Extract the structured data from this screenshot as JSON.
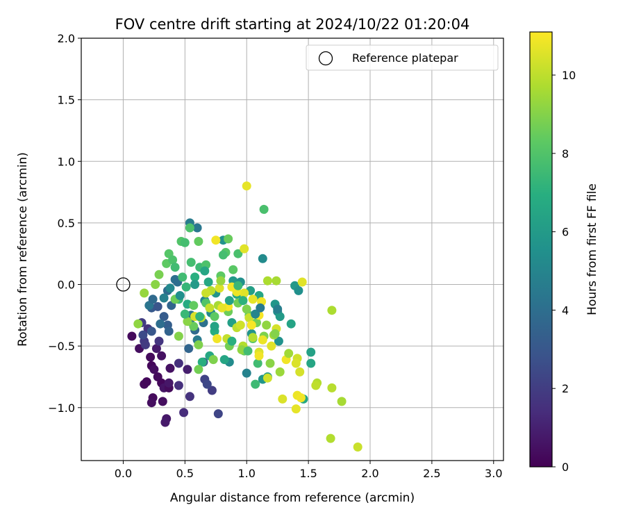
{
  "chart_data": {
    "type": "scatter",
    "title": "FOV centre drift starting at 2024/10/22 01:20:04",
    "xlabel": "Angular distance from reference (arcmin)",
    "ylabel": "Rotation from reference (arcmin)",
    "xlim": [
      -0.34,
      3.08
    ],
    "ylim": [
      -1.43,
      2.0
    ],
    "xticks": [
      0.0,
      0.5,
      1.0,
      1.5,
      2.0,
      2.5,
      3.0
    ],
    "xtick_labels": [
      "0.0",
      "0.5",
      "1.0",
      "1.5",
      "2.0",
      "2.5",
      "3.0"
    ],
    "yticks": [
      -1.0,
      -0.5,
      0.0,
      0.5,
      1.0,
      1.5,
      2.0
    ],
    "ytick_labels": [
      "−1.0",
      "−0.5",
      "0.0",
      "0.5",
      "1.0",
      "1.5",
      "2.0"
    ],
    "grid": true,
    "legend_position": "top-right",
    "reference_marker": {
      "label": "Reference platepar",
      "x": 0.0,
      "y": 0.0
    },
    "colorbar": {
      "label": "Hours from first FF file",
      "range": [
        0,
        11.1
      ],
      "ticks": [
        0,
        2,
        4,
        6,
        8,
        10
      ],
      "tick_labels": [
        "0",
        "2",
        "4",
        "6",
        "8",
        "10"
      ],
      "colormap": "viridis"
    },
    "points": [
      {
        "x": 0.07,
        "y": -0.42,
        "h": 0.3
      },
      {
        "x": 0.13,
        "y": -0.52,
        "h": 0.4
      },
      {
        "x": 0.17,
        "y": -0.81,
        "h": 0.3
      },
      {
        "x": 0.19,
        "y": -0.79,
        "h": 0.2
      },
      {
        "x": 0.22,
        "y": -0.59,
        "h": 0.3
      },
      {
        "x": 0.23,
        "y": -0.66,
        "h": 0.2
      },
      {
        "x": 0.24,
        "y": -0.92,
        "h": 0.3
      },
      {
        "x": 0.23,
        "y": -0.96,
        "h": 0.4
      },
      {
        "x": 0.25,
        "y": -0.69,
        "h": 0.4
      },
      {
        "x": 0.28,
        "y": -0.75,
        "h": 0.3
      },
      {
        "x": 0.31,
        "y": -0.8,
        "h": 0.2
      },
      {
        "x": 0.32,
        "y": -0.95,
        "h": 0.4
      },
      {
        "x": 0.31,
        "y": -0.58,
        "h": 0.5
      },
      {
        "x": 0.33,
        "y": -0.84,
        "h": 0.6
      },
      {
        "x": 0.37,
        "y": -0.84,
        "h": 0.3
      },
      {
        "x": 0.38,
        "y": -0.68,
        "h": 0.5
      },
      {
        "x": 0.35,
        "y": -1.09,
        "h": 0.7
      },
      {
        "x": 0.34,
        "y": -1.12,
        "h": 0.8
      },
      {
        "x": 0.37,
        "y": -0.8,
        "h": 0.7
      },
      {
        "x": 0.27,
        "y": -0.52,
        "h": 0.8
      },
      {
        "x": 0.49,
        "y": -1.04,
        "h": 1.4
      },
      {
        "x": 0.52,
        "y": -0.69,
        "h": 0.9
      },
      {
        "x": 0.45,
        "y": -0.82,
        "h": 1.5
      },
      {
        "x": 0.54,
        "y": -0.91,
        "h": 1.6
      },
      {
        "x": 0.45,
        "y": -0.64,
        "h": 1.5
      },
      {
        "x": 0.77,
        "y": -1.05,
        "h": 2.3
      },
      {
        "x": 0.72,
        "y": -0.86,
        "h": 2.0
      },
      {
        "x": 0.66,
        "y": -0.77,
        "h": 2.2
      },
      {
        "x": 0.68,
        "y": -0.81,
        "h": 2.4
      },
      {
        "x": 0.65,
        "y": -0.63,
        "h": 3.0
      },
      {
        "x": 0.2,
        "y": -0.36,
        "h": 1.6
      },
      {
        "x": 0.17,
        "y": -0.46,
        "h": 1.8
      },
      {
        "x": 0.15,
        "y": -0.31,
        "h": 2.0
      },
      {
        "x": 0.18,
        "y": -0.49,
        "h": 1.9
      },
      {
        "x": 0.29,
        "y": -0.46,
        "h": 1.7
      },
      {
        "x": 0.23,
        "y": -0.19,
        "h": 3.1
      },
      {
        "x": 0.28,
        "y": -0.18,
        "h": 2.9
      },
      {
        "x": 0.33,
        "y": -0.26,
        "h": 3.2
      },
      {
        "x": 0.36,
        "y": -0.33,
        "h": 3.3
      },
      {
        "x": 0.39,
        "y": -0.17,
        "h": 3.6
      },
      {
        "x": 0.36,
        "y": -0.05,
        "h": 3.9
      },
      {
        "x": 0.42,
        "y": 0.04,
        "h": 4.1
      },
      {
        "x": 0.44,
        "y": 0.02,
        "h": 4.0
      },
      {
        "x": 0.55,
        "y": -0.25,
        "h": 4.2
      },
      {
        "x": 0.54,
        "y": -0.3,
        "h": 4.4
      },
      {
        "x": 0.53,
        "y": -0.52,
        "h": 3.6
      },
      {
        "x": 0.6,
        "y": -0.45,
        "h": 4.5
      },
      {
        "x": 0.65,
        "y": -0.31,
        "h": 4.1
      },
      {
        "x": 0.54,
        "y": 0.5,
        "h": 4.6
      },
      {
        "x": 0.6,
        "y": 0.46,
        "h": 4.4
      },
      {
        "x": 0.58,
        "y": -0.37,
        "h": 3.8
      },
      {
        "x": 0.81,
        "y": 0.36,
        "h": 5.6
      },
      {
        "x": 0.66,
        "y": -0.13,
        "h": 5.0
      },
      {
        "x": 0.71,
        "y": -0.23,
        "h": 5.2
      },
      {
        "x": 0.86,
        "y": -0.63,
        "h": 5.3
      },
      {
        "x": 0.75,
        "y": -0.07,
        "h": 5.7
      },
      {
        "x": 0.89,
        "y": 0.03,
        "h": 5.9
      },
      {
        "x": 0.95,
        "y": 0.02,
        "h": 5.5
      },
      {
        "x": 1.0,
        "y": -0.72,
        "h": 4.9
      },
      {
        "x": 1.13,
        "y": 0.21,
        "h": 5.3
      },
      {
        "x": 1.04,
        "y": -0.4,
        "h": 5.7
      },
      {
        "x": 1.13,
        "y": -0.77,
        "h": 5.8
      },
      {
        "x": 1.17,
        "y": -0.75,
        "h": 6.1
      },
      {
        "x": 1.23,
        "y": -0.16,
        "h": 5.8
      },
      {
        "x": 1.25,
        "y": -0.22,
        "h": 5.4
      },
      {
        "x": 1.26,
        "y": -0.46,
        "h": 5.6
      },
      {
        "x": 1.27,
        "y": -0.26,
        "h": 6.0
      },
      {
        "x": 1.39,
        "y": -0.01,
        "h": 5.9
      },
      {
        "x": 1.42,
        "y": -0.05,
        "h": 5.5
      },
      {
        "x": 1.36,
        "y": -0.32,
        "h": 6.4
      },
      {
        "x": 1.52,
        "y": -0.55,
        "h": 6.3
      },
      {
        "x": 1.52,
        "y": -0.64,
        "h": 6.5
      },
      {
        "x": 1.46,
        "y": -0.93,
        "h": 6.6
      },
      {
        "x": 1.03,
        "y": -0.05,
        "h": 6.2
      },
      {
        "x": 1.1,
        "y": -0.09,
        "h": 6.5
      },
      {
        "x": 0.88,
        "y": -0.31,
        "h": 6.2
      },
      {
        "x": 0.92,
        "y": -0.08,
        "h": 6.7
      },
      {
        "x": 0.82,
        "y": -0.61,
        "h": 6.5
      },
      {
        "x": 0.74,
        "y": -0.38,
        "h": 6.9
      },
      {
        "x": 0.64,
        "y": -0.63,
        "h": 6.9
      },
      {
        "x": 0.7,
        "y": -0.58,
        "h": 6.6
      },
      {
        "x": 0.69,
        "y": 0.02,
        "h": 6.6
      },
      {
        "x": 0.58,
        "y": 0.06,
        "h": 7.0
      },
      {
        "x": 0.51,
        "y": -0.02,
        "h": 7.3
      },
      {
        "x": 0.52,
        "y": -0.16,
        "h": 6.8
      },
      {
        "x": 0.45,
        "y": -0.12,
        "h": 7.4
      },
      {
        "x": 0.48,
        "y": 0.06,
        "h": 7.6
      },
      {
        "x": 0.55,
        "y": 0.18,
        "h": 7.7
      },
      {
        "x": 0.62,
        "y": 0.14,
        "h": 7.5
      },
      {
        "x": 0.67,
        "y": 0.16,
        "h": 7.9
      },
      {
        "x": 0.54,
        "y": 0.46,
        "h": 7.9
      },
      {
        "x": 0.47,
        "y": 0.35,
        "h": 8.0
      },
      {
        "x": 0.5,
        "y": 0.34,
        "h": 7.7
      },
      {
        "x": 0.37,
        "y": 0.25,
        "h": 8.1
      },
      {
        "x": 0.35,
        "y": 0.17,
        "h": 8.3
      },
      {
        "x": 0.4,
        "y": 0.2,
        "h": 7.9
      },
      {
        "x": 0.42,
        "y": 0.14,
        "h": 7.6
      },
      {
        "x": 0.61,
        "y": 0.35,
        "h": 8.4
      },
      {
        "x": 0.83,
        "y": 0.26,
        "h": 8.1
      },
      {
        "x": 0.85,
        "y": 0.37,
        "h": 8.5
      },
      {
        "x": 0.81,
        "y": 0.24,
        "h": 7.7
      },
      {
        "x": 0.93,
        "y": 0.25,
        "h": 7.8
      },
      {
        "x": 0.89,
        "y": 0.12,
        "h": 8.2
      },
      {
        "x": 0.79,
        "y": 0.07,
        "h": 8.3
      },
      {
        "x": 1.14,
        "y": 0.61,
        "h": 7.8
      },
      {
        "x": 1.09,
        "y": -0.64,
        "h": 7.6
      },
      {
        "x": 1.07,
        "y": -0.81,
        "h": 7.5
      },
      {
        "x": 1.05,
        "y": -0.44,
        "h": 8.1
      },
      {
        "x": 1.02,
        "y": -0.25,
        "h": 8.2
      },
      {
        "x": 0.98,
        "y": -0.54,
        "h": 8.4
      },
      {
        "x": 0.86,
        "y": -0.5,
        "h": 8.7
      },
      {
        "x": 0.73,
        "y": -0.61,
        "h": 8.9
      },
      {
        "x": 0.61,
        "y": -0.69,
        "h": 8.7
      },
      {
        "x": 0.61,
        "y": -0.49,
        "h": 8.9
      },
      {
        "x": 0.57,
        "y": -0.34,
        "h": 8.5
      },
      {
        "x": 0.52,
        "y": -0.3,
        "h": 9.1
      },
      {
        "x": 0.45,
        "y": -0.42,
        "h": 9.0
      },
      {
        "x": 0.26,
        "y": 0.0,
        "h": 9.1
      },
      {
        "x": 0.29,
        "y": 0.08,
        "h": 8.8
      },
      {
        "x": 0.17,
        "y": -0.07,
        "h": 9.3
      },
      {
        "x": 0.12,
        "y": -0.32,
        "h": 9.2
      },
      {
        "x": 0.42,
        "y": -0.12,
        "h": 8.6
      },
      {
        "x": 0.57,
        "y": -0.17,
        "h": 8.4
      },
      {
        "x": 0.67,
        "y": -0.15,
        "h": 8.0
      },
      {
        "x": 0.74,
        "y": -0.26,
        "h": 8.3
      },
      {
        "x": 0.85,
        "y": -0.22,
        "h": 8.6
      },
      {
        "x": 0.93,
        "y": -0.15,
        "h": 8.7
      },
      {
        "x": 1.0,
        "y": -0.2,
        "h": 8.9
      },
      {
        "x": 1.08,
        "y": -0.31,
        "h": 8.7
      },
      {
        "x": 1.14,
        "y": -0.42,
        "h": 8.9
      },
      {
        "x": 1.16,
        "y": -0.33,
        "h": 9.2
      },
      {
        "x": 1.22,
        "y": -0.41,
        "h": 9.5
      },
      {
        "x": 1.27,
        "y": -0.71,
        "h": 9.4
      },
      {
        "x": 1.19,
        "y": -0.64,
        "h": 9.1
      },
      {
        "x": 1.24,
        "y": 0.03,
        "h": 9.6
      },
      {
        "x": 1.17,
        "y": 0.03,
        "h": 9.7
      },
      {
        "x": 1.05,
        "y": -0.43,
        "h": 9.8
      },
      {
        "x": 0.97,
        "y": -0.5,
        "h": 9.8
      },
      {
        "x": 0.92,
        "y": -0.35,
        "h": 10.0
      },
      {
        "x": 0.84,
        "y": -0.44,
        "h": 10.1
      },
      {
        "x": 0.77,
        "y": -0.17,
        "h": 9.6
      },
      {
        "x": 0.71,
        "y": -0.05,
        "h": 9.9
      },
      {
        "x": 0.63,
        "y": -0.27,
        "h": 10.0
      },
      {
        "x": 0.67,
        "y": -0.07,
        "h": 10.2
      },
      {
        "x": 0.75,
        "y": 0.36,
        "h": 10.9
      },
      {
        "x": 0.98,
        "y": 0.29,
        "h": 10.6
      },
      {
        "x": 1.0,
        "y": 0.8,
        "h": 10.7
      },
      {
        "x": 1.69,
        "y": -0.21,
        "h": 9.7
      },
      {
        "x": 1.57,
        "y": -0.8,
        "h": 9.8
      },
      {
        "x": 1.56,
        "y": -0.82,
        "h": 10.0
      },
      {
        "x": 1.69,
        "y": -0.84,
        "h": 9.9
      },
      {
        "x": 1.77,
        "y": -0.95,
        "h": 9.6
      },
      {
        "x": 1.68,
        "y": -1.25,
        "h": 9.8
      },
      {
        "x": 1.9,
        "y": -1.32,
        "h": 10.2
      },
      {
        "x": 1.41,
        "y": -0.6,
        "h": 10.3
      },
      {
        "x": 1.4,
        "y": -0.64,
        "h": 10.5
      },
      {
        "x": 1.43,
        "y": -0.71,
        "h": 10.4
      },
      {
        "x": 1.45,
        "y": 0.02,
        "h": 10.6
      },
      {
        "x": 1.32,
        "y": -0.61,
        "h": 10.9
      },
      {
        "x": 1.41,
        "y": -0.9,
        "h": 10.8
      },
      {
        "x": 1.44,
        "y": -0.92,
        "h": 10.9
      },
      {
        "x": 1.4,
        "y": -1.01,
        "h": 10.7
      },
      {
        "x": 1.29,
        "y": -0.93,
        "h": 10.5
      },
      {
        "x": 1.24,
        "y": -0.36,
        "h": 10.4
      },
      {
        "x": 1.2,
        "y": -0.5,
        "h": 10.6
      },
      {
        "x": 1.1,
        "y": -0.55,
        "h": 10.5
      },
      {
        "x": 1.13,
        "y": -0.45,
        "h": 10.8
      },
      {
        "x": 1.1,
        "y": -0.25,
        "h": 11.0
      },
      {
        "x": 1.12,
        "y": -0.14,
        "h": 10.9
      },
      {
        "x": 1.05,
        "y": -0.12,
        "h": 10.7
      },
      {
        "x": 0.98,
        "y": -0.07,
        "h": 10.6
      },
      {
        "x": 0.92,
        "y": -0.06,
        "h": 10.8
      },
      {
        "x": 0.88,
        "y": -0.02,
        "h": 10.9
      },
      {
        "x": 0.85,
        "y": -0.18,
        "h": 11.0
      },
      {
        "x": 0.8,
        "y": -0.19,
        "h": 10.7
      },
      {
        "x": 0.78,
        "y": -0.03,
        "h": 10.5
      },
      {
        "x": 0.76,
        "y": -0.44,
        "h": 10.9
      },
      {
        "x": 0.95,
        "y": -0.33,
        "h": 10.3
      },
      {
        "x": 1.02,
        "y": -0.27,
        "h": 10.2
      },
      {
        "x": 1.04,
        "y": -0.33,
        "h": 11.0
      },
      {
        "x": 1.1,
        "y": -0.58,
        "h": 10.9
      },
      {
        "x": 1.17,
        "y": -0.76,
        "h": 10.3
      },
      {
        "x": 0.58,
        "y": -0.26,
        "h": 10.5
      },
      {
        "x": 0.7,
        "y": -0.19,
        "h": 10.1
      },
      {
        "x": 0.79,
        "y": 0.03,
        "h": 9.3
      },
      {
        "x": 0.96,
        "y": -0.53,
        "h": 9.2
      },
      {
        "x": 1.23,
        "y": -0.4,
        "h": 9.0
      },
      {
        "x": 1.34,
        "y": -0.56,
        "h": 9.5
      },
      {
        "x": 0.5,
        "y": -0.24,
        "h": 7.4
      },
      {
        "x": 0.62,
        "y": -0.26,
        "h": 7.2
      },
      {
        "x": 0.88,
        "y": -0.46,
        "h": 7.0
      },
      {
        "x": 1.01,
        "y": -0.54,
        "h": 7.6
      },
      {
        "x": 0.93,
        "y": -0.01,
        "h": 7.4
      },
      {
        "x": 0.97,
        "y": -0.13,
        "h": 7.1
      },
      {
        "x": 0.66,
        "y": 0.11,
        "h": 6.5
      },
      {
        "x": 0.58,
        "y": 0.0,
        "h": 6.0
      },
      {
        "x": 0.46,
        "y": -0.09,
        "h": 5.5
      },
      {
        "x": 0.38,
        "y": -0.03,
        "h": 5.2
      },
      {
        "x": 0.33,
        "y": -0.11,
        "h": 4.8
      },
      {
        "x": 0.21,
        "y": -0.17,
        "h": 4.3
      },
      {
        "x": 0.3,
        "y": -0.32,
        "h": 4.0
      },
      {
        "x": 0.37,
        "y": -0.38,
        "h": 3.5
      },
      {
        "x": 0.23,
        "y": -0.38,
        "h": 3.0
      },
      {
        "x": 0.16,
        "y": -0.41,
        "h": 2.5
      },
      {
        "x": 0.24,
        "y": -0.12,
        "h": 3.8
      },
      {
        "x": 0.74,
        "y": -0.34,
        "h": 6.4
      },
      {
        "x": 0.86,
        "y": -0.13,
        "h": 6.3
      },
      {
        "x": 1.07,
        "y": -0.24,
        "h": 5.0
      },
      {
        "x": 1.11,
        "y": -0.19,
        "h": 4.5
      },
      {
        "x": 1.25,
        "y": -0.2,
        "h": 4.7
      }
    ]
  }
}
